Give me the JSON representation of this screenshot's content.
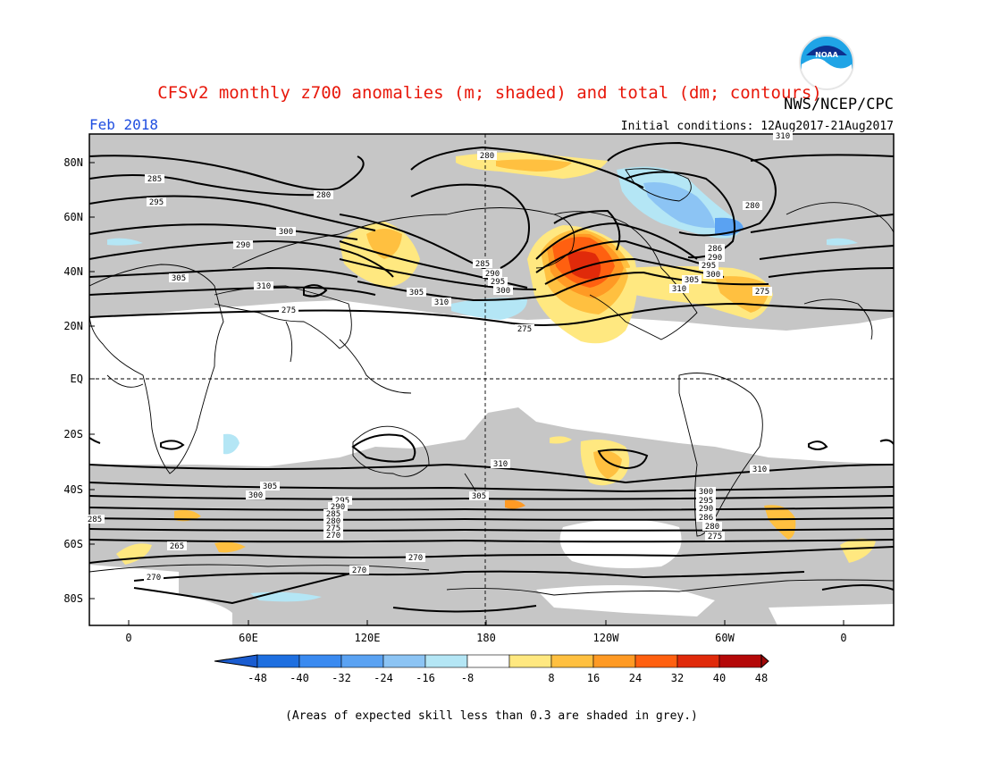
{
  "title": "CFSv2 monthly z700 anomalies (m; shaded) and total (dm; contours)",
  "agency": "NWS/NCEP/CPC",
  "logo_text": "NOAA",
  "month_label": "Feb 2018",
  "init_label": "Initial conditions: 12Aug2017-21Aug2017",
  "footnote": "(Areas of expected skill less than 0.3 are shaded in grey.)",
  "lat_ticks": [
    "80N",
    "60N",
    "40N",
    "20N",
    "EQ",
    "20S",
    "40S",
    "60S",
    "80S"
  ],
  "lon_ticks": [
    "0",
    "60E",
    "120E",
    "180",
    "120W",
    "60W",
    "0"
  ],
  "colorbar_labels": [
    "-48",
    "-40",
    "-32",
    "-24",
    "-16",
    "-8",
    "8",
    "16",
    "24",
    "32",
    "40",
    "48"
  ],
  "colorbar_colors": [
    "#1e6fe0",
    "#3a8af0",
    "#5aa2f2",
    "#8cc4f4",
    "#b4e6f5",
    "#ffffff",
    "#ffe880",
    "#ffc040",
    "#ff9a24",
    "#ff6010",
    "#e02a0a",
    "#b40808"
  ],
  "contour_labels": [
    "280",
    "285",
    "295",
    "290",
    "300",
    "305",
    "310",
    "275",
    "280",
    "285",
    "290",
    "295",
    "300",
    "305",
    "310",
    "275",
    "280",
    "286",
    "290",
    "295",
    "300",
    "305",
    "310",
    "275",
    "310",
    "310",
    "310",
    "305",
    "300",
    "295",
    "290",
    "285",
    "280",
    "275",
    "270",
    "265",
    "270",
    "270",
    "270",
    "285",
    "305",
    "300",
    "295",
    "290",
    "286",
    "280",
    "275"
  ],
  "colors": {
    "title": "#e8170a",
    "month": "#1f4ee0",
    "grey": "#c6c6c6",
    "contour": "#000000"
  }
}
